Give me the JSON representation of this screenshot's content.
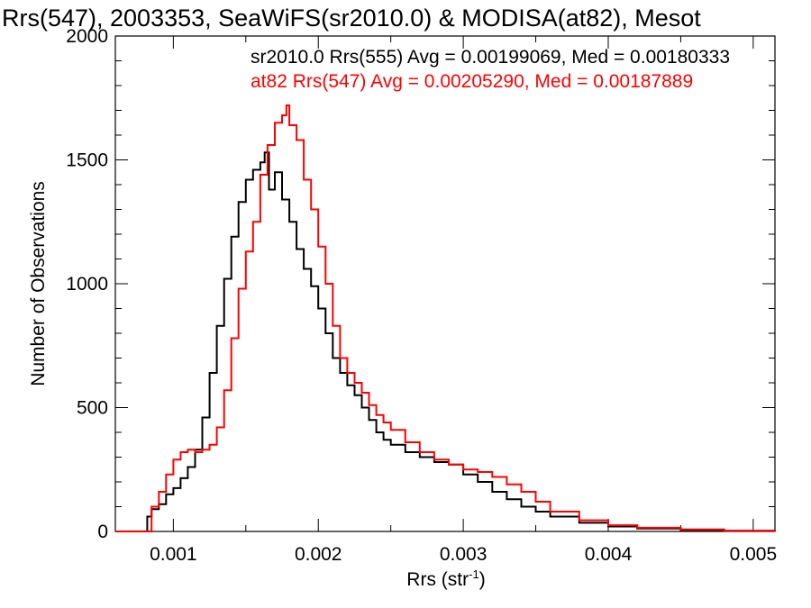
{
  "chart_data": {
    "type": "line",
    "title": "Rrs(547), 2003353, SeaWiFS(sr2010.0) & MODISA(at82), Mesot",
    "xlabel_base": "Rrs (str",
    "xlabel_sup": "-1",
    "xlabel_close": ")",
    "ylabel": "Number of Observations",
    "xlim": [
      0.0006,
      0.00515
    ],
    "ylim": [
      0,
      2000
    ],
    "grid": false,
    "legend_position": "top-right",
    "x_ticks": [
      {
        "v": 0.001,
        "label": "0.001"
      },
      {
        "v": 0.002,
        "label": "0.002"
      },
      {
        "v": 0.003,
        "label": "0.003"
      },
      {
        "v": 0.004,
        "label": "0.004"
      },
      {
        "v": 0.005,
        "label": "0.005"
      }
    ],
    "y_ticks": [
      {
        "v": 0,
        "label": "0"
      },
      {
        "v": 500,
        "label": "500"
      },
      {
        "v": 1000,
        "label": "1000"
      },
      {
        "v": 1500,
        "label": "1500"
      },
      {
        "v": 2000,
        "label": "2000"
      }
    ],
    "series": [
      {
        "name": "sr2010.0 Rrs(555) Avg = 0.00199069, Med = 0.00180333",
        "color": "#000000",
        "points": [
          [
            0.0006,
            0
          ],
          [
            0.0008,
            0
          ],
          [
            0.00082,
            60
          ],
          [
            0.00085,
            90
          ],
          [
            0.0009,
            110
          ],
          [
            0.00095,
            150
          ],
          [
            0.001,
            175
          ],
          [
            0.00105,
            215
          ],
          [
            0.0011,
            260
          ],
          [
            0.00115,
            330
          ],
          [
            0.0012,
            460
          ],
          [
            0.00125,
            640
          ],
          [
            0.0013,
            830
          ],
          [
            0.00135,
            1020
          ],
          [
            0.0014,
            1190
          ],
          [
            0.00145,
            1330
          ],
          [
            0.0015,
            1420
          ],
          [
            0.00155,
            1460
          ],
          [
            0.0016,
            1490
          ],
          [
            0.00163,
            1530
          ],
          [
            0.00166,
            1380
          ],
          [
            0.0017,
            1450
          ],
          [
            0.00175,
            1340
          ],
          [
            0.0018,
            1250
          ],
          [
            0.00185,
            1140
          ],
          [
            0.0019,
            1060
          ],
          [
            0.00195,
            990
          ],
          [
            0.002,
            900
          ],
          [
            0.00205,
            800
          ],
          [
            0.0021,
            700
          ],
          [
            0.00215,
            640
          ],
          [
            0.0022,
            590
          ],
          [
            0.00225,
            550
          ],
          [
            0.0023,
            500
          ],
          [
            0.00235,
            450
          ],
          [
            0.0024,
            400
          ],
          [
            0.00245,
            370
          ],
          [
            0.0025,
            350
          ],
          [
            0.0026,
            320
          ],
          [
            0.0027,
            300
          ],
          [
            0.0028,
            280
          ],
          [
            0.0029,
            270
          ],
          [
            0.003,
            230
          ],
          [
            0.0031,
            200
          ],
          [
            0.0032,
            160
          ],
          [
            0.0033,
            130
          ],
          [
            0.0034,
            100
          ],
          [
            0.0035,
            80
          ],
          [
            0.0036,
            60
          ],
          [
            0.0038,
            35
          ],
          [
            0.004,
            20
          ],
          [
            0.0042,
            12
          ],
          [
            0.0045,
            6
          ],
          [
            0.0048,
            3
          ],
          [
            0.00515,
            1
          ]
        ]
      },
      {
        "name": "at82 Rrs(547) Avg = 0.00205290, Med = 0.00187889",
        "color": "#ff0000",
        "points": [
          [
            0.0006,
            0
          ],
          [
            0.0008,
            0
          ],
          [
            0.00085,
            100
          ],
          [
            0.0009,
            160
          ],
          [
            0.00095,
            230
          ],
          [
            0.001,
            290
          ],
          [
            0.00105,
            320
          ],
          [
            0.0011,
            330
          ],
          [
            0.00115,
            320
          ],
          [
            0.0012,
            330
          ],
          [
            0.00125,
            350
          ],
          [
            0.0013,
            420
          ],
          [
            0.00135,
            570
          ],
          [
            0.0014,
            780
          ],
          [
            0.00145,
            980
          ],
          [
            0.0015,
            1130
          ],
          [
            0.00155,
            1250
          ],
          [
            0.0016,
            1440
          ],
          [
            0.00165,
            1560
          ],
          [
            0.0017,
            1650
          ],
          [
            0.00175,
            1680
          ],
          [
            0.00178,
            1720
          ],
          [
            0.0018,
            1640
          ],
          [
            0.00185,
            1580
          ],
          [
            0.0019,
            1420
          ],
          [
            0.00195,
            1300
          ],
          [
            0.002,
            1150
          ],
          [
            0.00205,
            1000
          ],
          [
            0.0021,
            830
          ],
          [
            0.00215,
            700
          ],
          [
            0.0022,
            640
          ],
          [
            0.00225,
            600
          ],
          [
            0.0023,
            560
          ],
          [
            0.00235,
            510
          ],
          [
            0.0024,
            470
          ],
          [
            0.00245,
            440
          ],
          [
            0.0025,
            410
          ],
          [
            0.0026,
            360
          ],
          [
            0.0027,
            320
          ],
          [
            0.0028,
            290
          ],
          [
            0.0029,
            270
          ],
          [
            0.003,
            250
          ],
          [
            0.0031,
            240
          ],
          [
            0.0032,
            220
          ],
          [
            0.0033,
            190
          ],
          [
            0.0034,
            160
          ],
          [
            0.0035,
            120
          ],
          [
            0.0036,
            80
          ],
          [
            0.0038,
            45
          ],
          [
            0.004,
            25
          ],
          [
            0.0042,
            15
          ],
          [
            0.0045,
            8
          ],
          [
            0.0048,
            3
          ],
          [
            0.00515,
            1
          ]
        ]
      }
    ]
  }
}
